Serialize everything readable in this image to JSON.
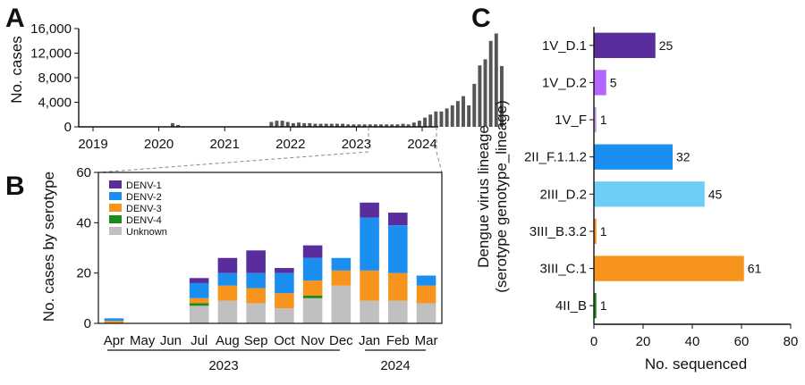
{
  "panels": {
    "a": "A",
    "b": "B",
    "c": "C"
  },
  "chart_data": [
    {
      "type": "bar",
      "ylabel": "No. cases",
      "ylim": [
        0,
        16000
      ],
      "yticks": [
        "0",
        "4,000",
        "8,000",
        "12,000",
        "16,000"
      ],
      "xticks": [
        "2019",
        "2020",
        "2021",
        "2022",
        "2023",
        "2024"
      ],
      "monthly_cases": [
        0,
        0,
        0,
        0,
        0,
        0,
        0,
        0,
        0,
        0,
        0,
        0,
        0,
        0,
        600,
        300,
        0,
        0,
        0,
        0,
        0,
        0,
        0,
        0,
        0,
        0,
        0,
        0,
        0,
        0,
        0,
        0,
        800,
        1000,
        1000,
        800,
        600,
        700,
        600,
        600,
        500,
        500,
        500,
        500,
        500,
        500,
        400,
        400,
        400,
        400,
        400,
        400,
        400,
        400,
        400,
        400,
        500,
        400,
        700,
        1000,
        1500,
        2000,
        2500,
        2500,
        3000,
        3500,
        4200,
        5000,
        3500,
        7000,
        10000,
        11000,
        14000,
        15200,
        9900
      ]
    },
    {
      "type": "bar",
      "stacked": true,
      "ylabel": "No. cases by serotype",
      "ylim": [
        0,
        60
      ],
      "yticks": [
        "0",
        "20",
        "40",
        "60"
      ],
      "categories": [
        "Apr",
        "May",
        "Jun",
        "Jul",
        "Aug",
        "Sep",
        "Oct",
        "Nov",
        "Dec",
        "Jan",
        "Feb",
        "Mar"
      ],
      "year_labels": [
        "2023",
        "2024"
      ],
      "legend": "top-left",
      "series": [
        {
          "name": "Unknown",
          "color": "#c0c0c0",
          "values": [
            0,
            0,
            0,
            7,
            9,
            8,
            6,
            10,
            15,
            9,
            9,
            8
          ]
        },
        {
          "name": "DENV-4",
          "color": "#1a8c1a",
          "values": [
            0,
            0,
            0,
            1,
            0,
            0,
            0,
            1,
            0,
            0,
            0,
            0
          ]
        },
        {
          "name": "DENV-3",
          "color": "#f7941d",
          "values": [
            1,
            0,
            0,
            2,
            6,
            6,
            6,
            6,
            6,
            12,
            11,
            7
          ]
        },
        {
          "name": "DENV-2",
          "color": "#1a8ff0",
          "values": [
            1,
            0,
            0,
            6,
            5,
            6,
            8,
            9,
            5,
            21,
            19,
            4
          ]
        },
        {
          "name": "DENV-1",
          "color": "#5a2d9c",
          "values": [
            0,
            0,
            0,
            2,
            6,
            9,
            2,
            5,
            0,
            6,
            5,
            0
          ]
        }
      ],
      "legend_order": [
        "DENV-1",
        "DENV-2",
        "DENV-3",
        "DENV-4",
        "Unknown"
      ]
    },
    {
      "type": "bar",
      "orientation": "horizontal",
      "xlabel": "No. sequenced",
      "ylabel_line1": "Dengue virus lineage",
      "ylabel_line2": "(serotype genotype_lineage)",
      "xlim": [
        0,
        80
      ],
      "xticks": [
        "0",
        "20",
        "40",
        "60",
        "80"
      ],
      "categories": [
        "1V_D.1",
        "1V_D.2",
        "1V_F",
        "2II_F.1.1.2",
        "2III_D.2",
        "3III_B.3.2",
        "3III_C.1",
        "4II_B"
      ],
      "values": [
        25,
        5,
        1,
        32,
        45,
        1,
        61,
        1
      ],
      "colors": [
        "#5a2d9c",
        "#b366ff",
        "#c89be8",
        "#1a8ff0",
        "#6dcff6",
        "#f7941d",
        "#f7941d",
        "#1a8c1a"
      ]
    }
  ]
}
